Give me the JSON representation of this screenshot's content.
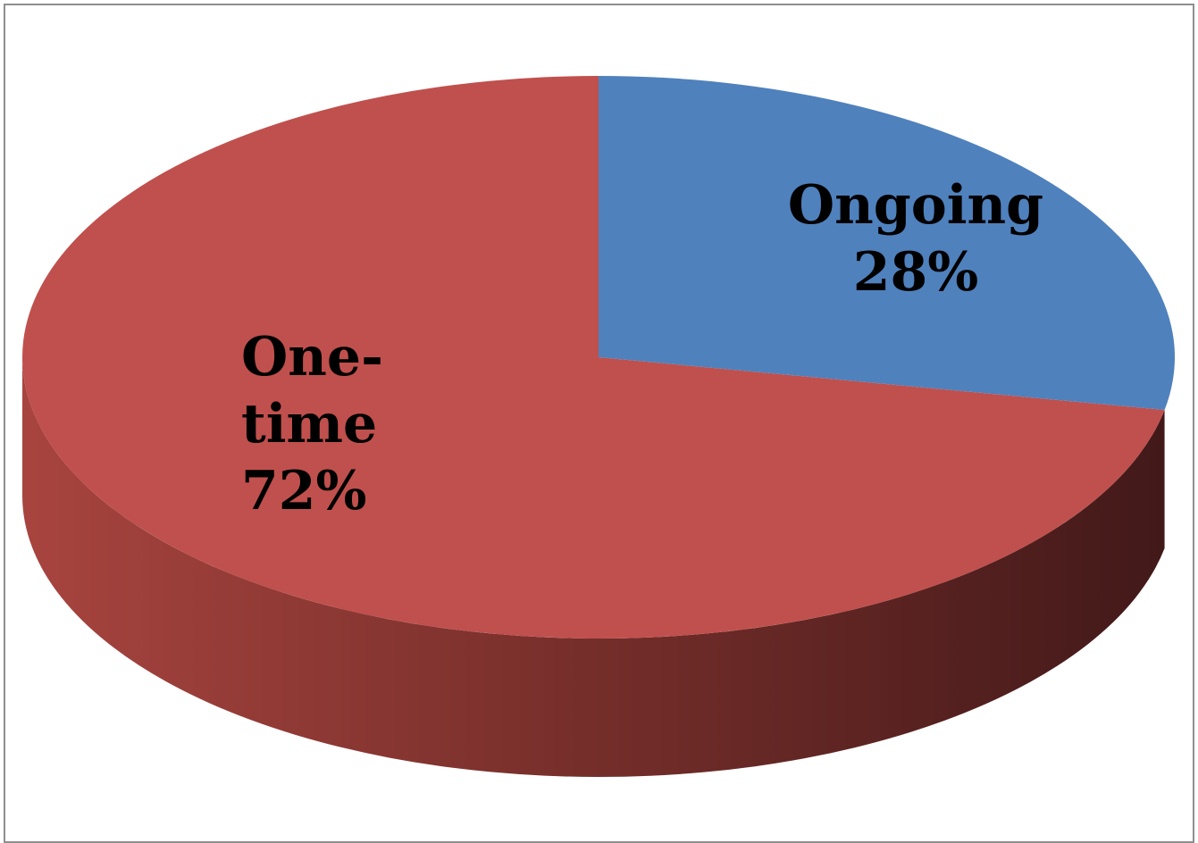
{
  "chart_data": {
    "type": "pie",
    "style": "3d",
    "slices": [
      {
        "name": "Ongoing",
        "label": "Ongoing",
        "value": 28,
        "value_label": "28%",
        "color": "#4f81bd"
      },
      {
        "name": "One-time",
        "label_lines": [
          "One-",
          "time"
        ],
        "value": 72,
        "value_label": "72%",
        "color": "#c0504d"
      }
    ],
    "legend": "none"
  }
}
